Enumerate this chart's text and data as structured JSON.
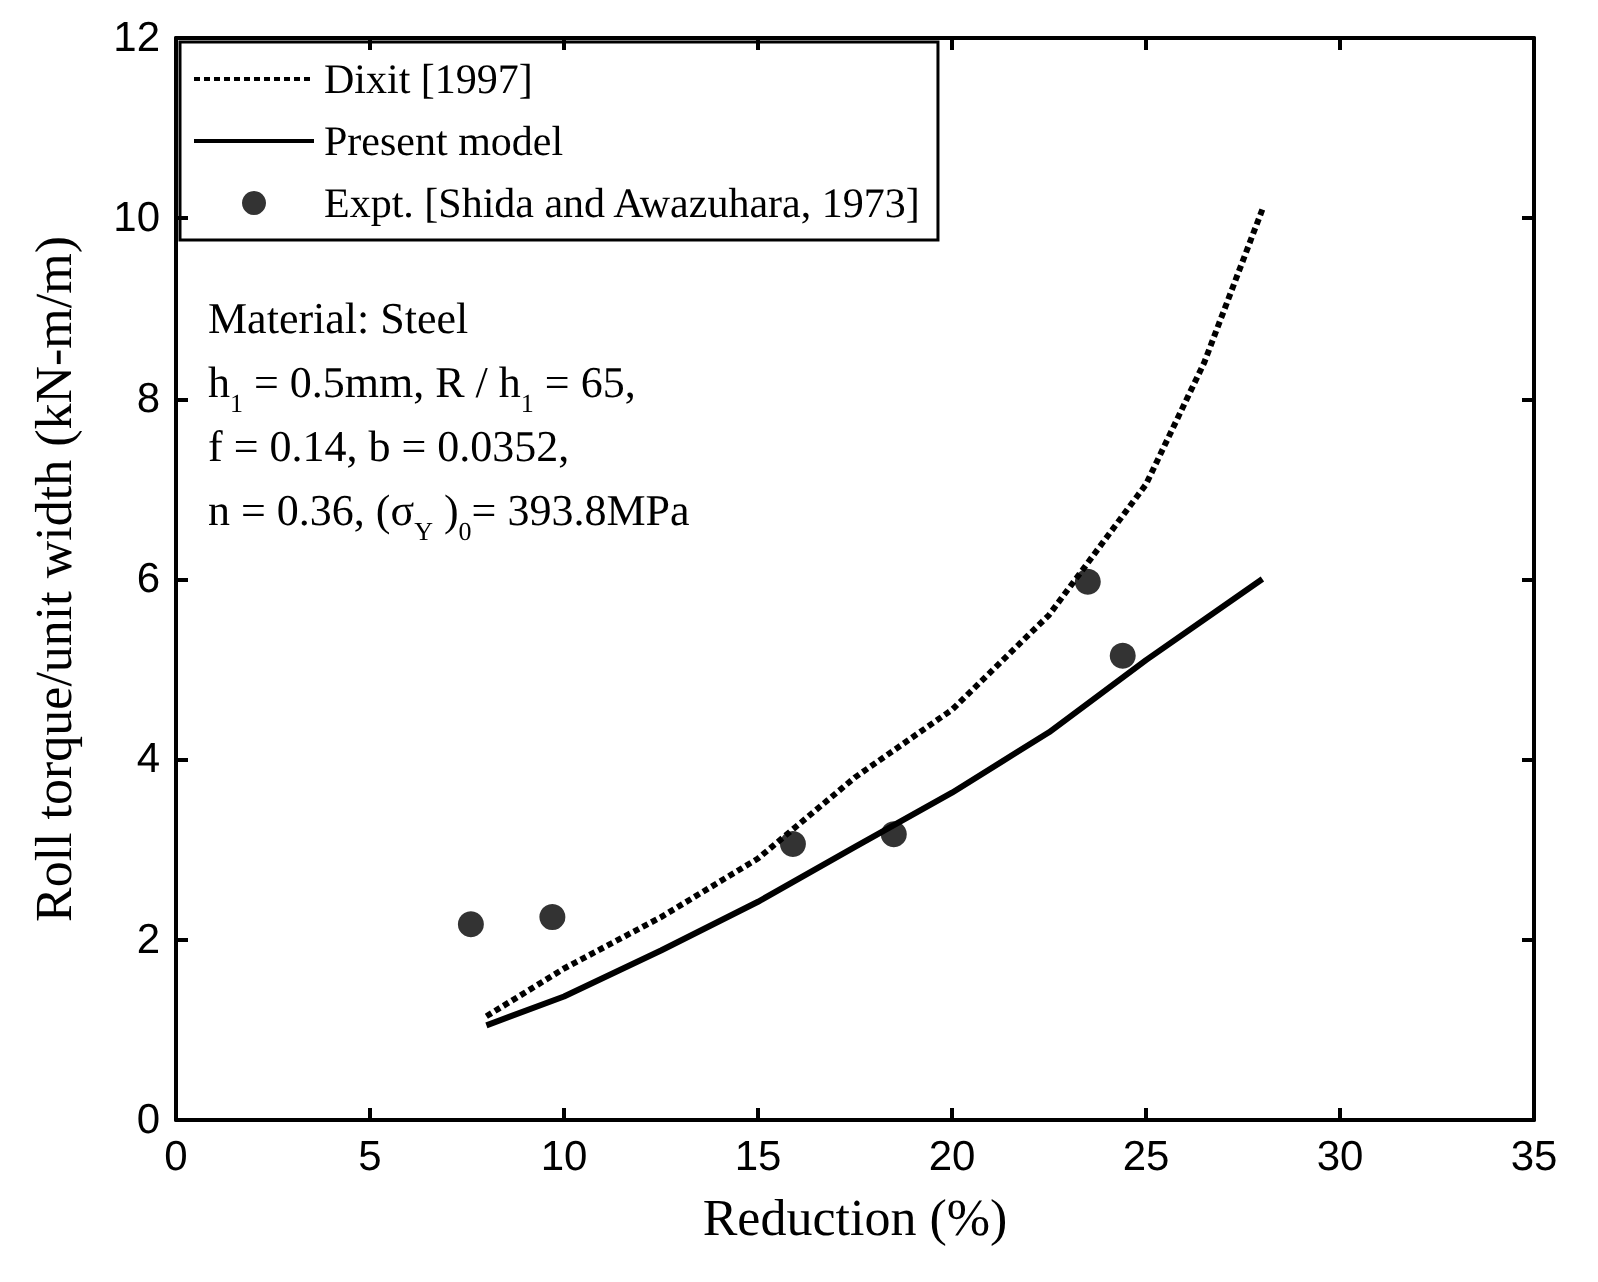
{
  "chart_data": {
    "type": "line",
    "xlabel": "Reduction (%)",
    "ylabel": "Roll torque/unit width (kN-m/m)",
    "xlim": [
      0,
      35
    ],
    "xticks": [
      0,
      5,
      10,
      15,
      20,
      25,
      30,
      35
    ],
    "ylim": [
      0,
      12
    ],
    "yticks": [
      0,
      2,
      4,
      6,
      8,
      10,
      12
    ],
    "grid": false,
    "legend": "top left",
    "annotations": [
      "Material: Steel",
      "h$_{1}$ = 0.5mm, R / h$_{1}$ = 65,",
      "f = 0.14, b = 0.0352,",
      "n = 0.36, (σ$_{Y}$ )$_{0}$= 393.8MPa"
    ],
    "series": [
      {
        "name": "Dixit [1997]",
        "type": "line",
        "color": "#000000",
        "line_style": "dotted",
        "marker": "none",
        "x": [
          8,
          10,
          12.5,
          15,
          17.5,
          20,
          22.5,
          25,
          26.5,
          28
        ],
        "values": [
          1.15,
          1.68,
          2.25,
          2.9,
          3.8,
          4.55,
          5.6,
          7.05,
          8.4,
          10.1
        ]
      },
      {
        "name": "Present model",
        "type": "line",
        "color": "#000000",
        "line_style": "solid",
        "marker": "none",
        "x": [
          8,
          10,
          12.5,
          15,
          17.5,
          20,
          22.5,
          25,
          28
        ],
        "values": [
          1.05,
          1.37,
          1.88,
          2.42,
          3.03,
          3.63,
          4.3,
          5.1,
          6.0
        ]
      },
      {
        "name": "Expt. [Shida and Awazuhara, 1973]",
        "type": "scatter",
        "color": "#000000",
        "marker": "circle",
        "x": [
          7.6,
          9.7,
          15.9,
          18.5,
          23.5,
          24.4
        ],
        "values": [
          2.17,
          2.25,
          3.06,
          3.17,
          5.97,
          5.15
        ]
      }
    ]
  }
}
